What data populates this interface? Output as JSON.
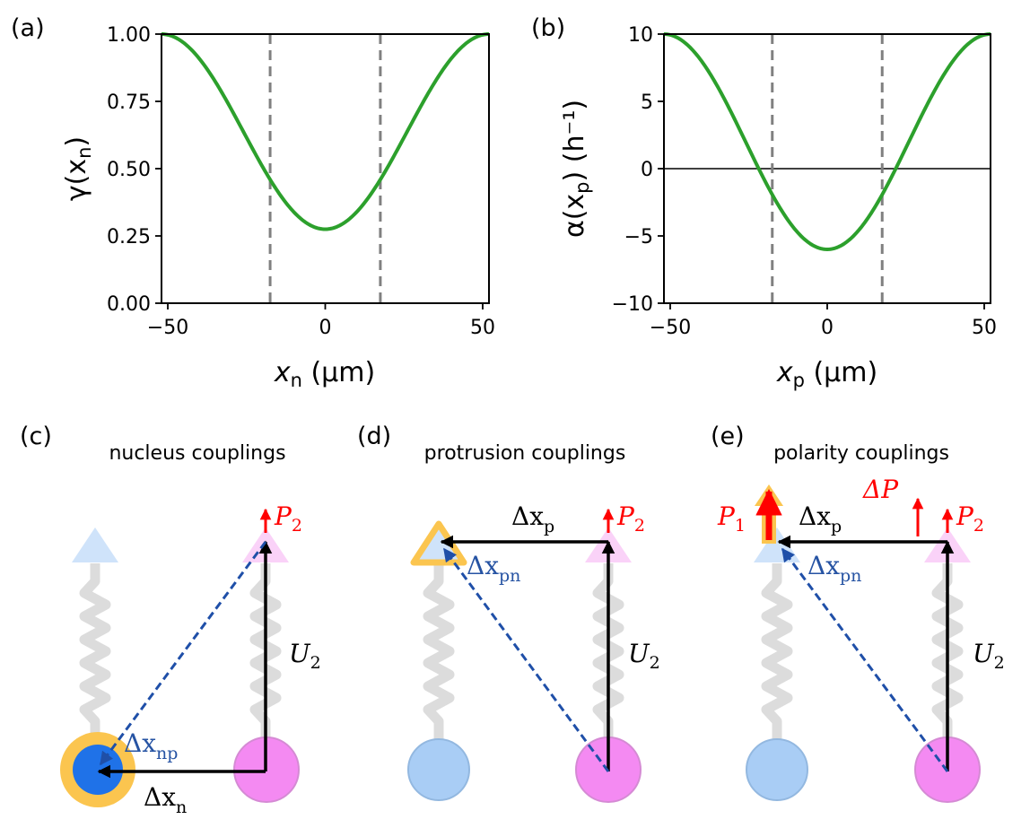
{
  "colors": {
    "curve": "#2ca02c",
    "dash": "#808080",
    "red": "#ff0000",
    "blue_dash": "#1f4fa8",
    "pink": "#f48af2",
    "light_blue": "#a9cdf5",
    "dark_blue": "#1f72e8",
    "gold": "#fbc54f",
    "spring": "#d9d9d9",
    "label_blue": "#2653a3"
  },
  "chart_data": [
    {
      "type": "line",
      "panel_label": "(a)",
      "xlabel_var": "x",
      "xlabel_sub": "n",
      "xlabel_unit": " (μm)",
      "ylabel_pre": "γ(x",
      "ylabel_sub": "n",
      "ylabel_post": ")",
      "xlim": [
        -52,
        52
      ],
      "ylim": [
        0,
        1
      ],
      "xticks": [
        -50,
        0,
        50
      ],
      "xtick_labels": [
        "−50",
        "0",
        "50"
      ],
      "yticks": [
        0,
        0.25,
        0.5,
        0.75,
        1
      ],
      "ytick_labels": [
        "0.00",
        "0.25",
        "0.50",
        "0.75",
        "1.00"
      ],
      "curve": {
        "formula": "mid + amp*cos(pi*x/52)",
        "x_range": [
          -52,
          52
        ],
        "min": 0.275,
        "max": 1.0
      },
      "vlines": [
        -17.5,
        17.5
      ],
      "hline": null
    },
    {
      "type": "line",
      "panel_label": "(b)",
      "xlabel_var": "x",
      "xlabel_sub": "p",
      "xlabel_unit": " (μm)",
      "ylabel_pre": "α(x",
      "ylabel_sub": "p",
      "ylabel_post": ") (h⁻¹)",
      "xlim": [
        -52,
        52
      ],
      "ylim": [
        -10,
        10
      ],
      "xticks": [
        -50,
        0,
        50
      ],
      "xtick_labels": [
        "−50",
        "0",
        "50"
      ],
      "yticks": [
        -10,
        -5,
        0,
        5,
        10
      ],
      "ytick_labels": [
        "−10",
        "−5",
        "0",
        "5",
        "10"
      ],
      "curve": {
        "formula": "mid + amp*cos(pi*x/52)",
        "x_range": [
          -52,
          52
        ],
        "min": -6.0,
        "max": 10.0
      },
      "vlines": [
        -17.5,
        17.5
      ],
      "hline": 0
    }
  ],
  "diagrams": {
    "c": {
      "panel_label": "(c)",
      "title": "nucleus couplings",
      "label_P2": "P",
      "label_P2_sub": "2",
      "label_U2": "U",
      "label_U2_sub": "2",
      "label_dxnp": "Δx",
      "label_dxnp_sub": "np",
      "label_dxn": "Δx",
      "label_dxn_sub": "n"
    },
    "d": {
      "panel_label": "(d)",
      "title": "protrusion couplings",
      "label_P2": "P",
      "label_P2_sub": "2",
      "label_U2": "U",
      "label_U2_sub": "2",
      "label_dxp": "Δx",
      "label_dxp_sub": "p",
      "label_dxpn": "Δx",
      "label_dxpn_sub": "pn"
    },
    "e": {
      "panel_label": "(e)",
      "title": "polarity couplings",
      "label_P1": "P",
      "label_P1_sub": "1",
      "label_P2": "P",
      "label_P2_sub": "2",
      "label_dP": "ΔP",
      "label_U2": "U",
      "label_U2_sub": "2",
      "label_dxp": "Δx",
      "label_dxp_sub": "p",
      "label_dxpn": "Δx",
      "label_dxpn_sub": "pn"
    }
  }
}
